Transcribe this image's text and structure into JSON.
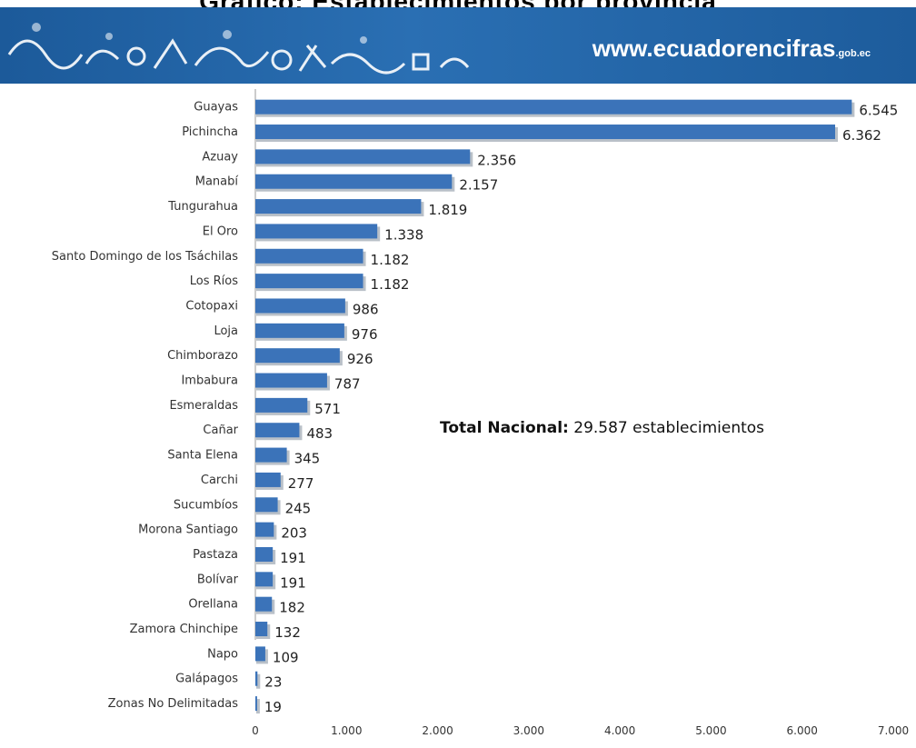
{
  "banner": {
    "title": "Gráfico: Establecimientos por provincia",
    "url_main": "www.ecuadorencifras",
    "url_suffix": ".gob.ec"
  },
  "colors": {
    "bar": "#3b73b9",
    "bar_shadow": "#b9c0c8",
    "banner": "#2a6fb3"
  },
  "chart_data": {
    "type": "bar",
    "orientation": "horizontal",
    "title": "",
    "xlabel": "",
    "ylabel": "",
    "xlim": [
      0,
      7000
    ],
    "grid": false,
    "legend": "none",
    "categories": [
      "Guayas",
      "Pichincha",
      "Azuay",
      "Manabí",
      "Tungurahua",
      "El Oro",
      "Santo Domingo de los Tsáchilas",
      "Los Ríos",
      "Cotopaxi",
      "Loja",
      "Chimborazo",
      "Imbabura",
      "Esmeraldas",
      "Cañar",
      "Santa Elena",
      "Carchi",
      "Sucumbíos",
      "Morona Santiago",
      "Pastaza",
      "Bolívar",
      "Orellana",
      "Zamora Chinchipe",
      "Napo",
      "Galápagos",
      "Zonas No Delimitadas"
    ],
    "values": [
      6545,
      6362,
      2356,
      2157,
      1819,
      1338,
      1182,
      1182,
      986,
      976,
      926,
      787,
      571,
      483,
      345,
      277,
      245,
      203,
      191,
      191,
      182,
      132,
      109,
      23,
      19
    ],
    "value_labels": [
      "6.545",
      "6.362",
      "2.356",
      "2.157",
      "1.819",
      "1.338",
      "1.182",
      "1.182",
      "986",
      "976",
      "926",
      "787",
      "571",
      "483",
      "345",
      "277",
      "245",
      "203",
      "191",
      "191",
      "182",
      "132",
      "109",
      "23",
      "19"
    ],
    "ticks": [
      0,
      1000,
      2000,
      3000,
      4000,
      5000,
      6000,
      7000
    ],
    "tick_labels": [
      "0",
      "1.000",
      "2.000",
      "3.000",
      "4.000",
      "5.000",
      "6.000",
      "7.000"
    ],
    "annotation": {
      "bold": "Total Nacional:",
      "text": " 29.587 establecimientos"
    }
  }
}
